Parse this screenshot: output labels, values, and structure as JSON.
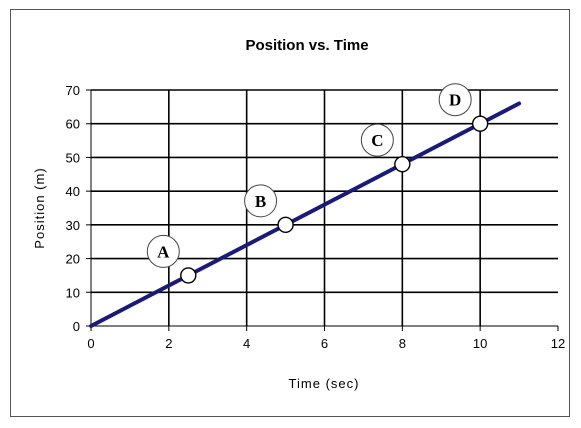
{
  "chart_data": {
    "type": "line",
    "title": "Position vs. Time",
    "xlabel": "Time (sec)",
    "ylabel": "Position (m)",
    "xlim": [
      0,
      12
    ],
    "ylim": [
      0,
      70
    ],
    "xticks": [
      0,
      2,
      4,
      6,
      8,
      10,
      12
    ],
    "yticks": [
      0,
      10,
      20,
      30,
      40,
      50,
      60,
      70
    ],
    "grid": true,
    "legend": "none",
    "line_color": "#1a1a7a",
    "series": [
      {
        "x": [
          0,
          11
        ],
        "y": [
          0,
          66
        ]
      }
    ],
    "points": [
      {
        "label": "A",
        "x": 2.5,
        "y": 15
      },
      {
        "label": "B",
        "x": 5,
        "y": 30
      },
      {
        "label": "C",
        "x": 8,
        "y": 48
      },
      {
        "label": "D",
        "x": 10,
        "y": 60
      }
    ]
  }
}
